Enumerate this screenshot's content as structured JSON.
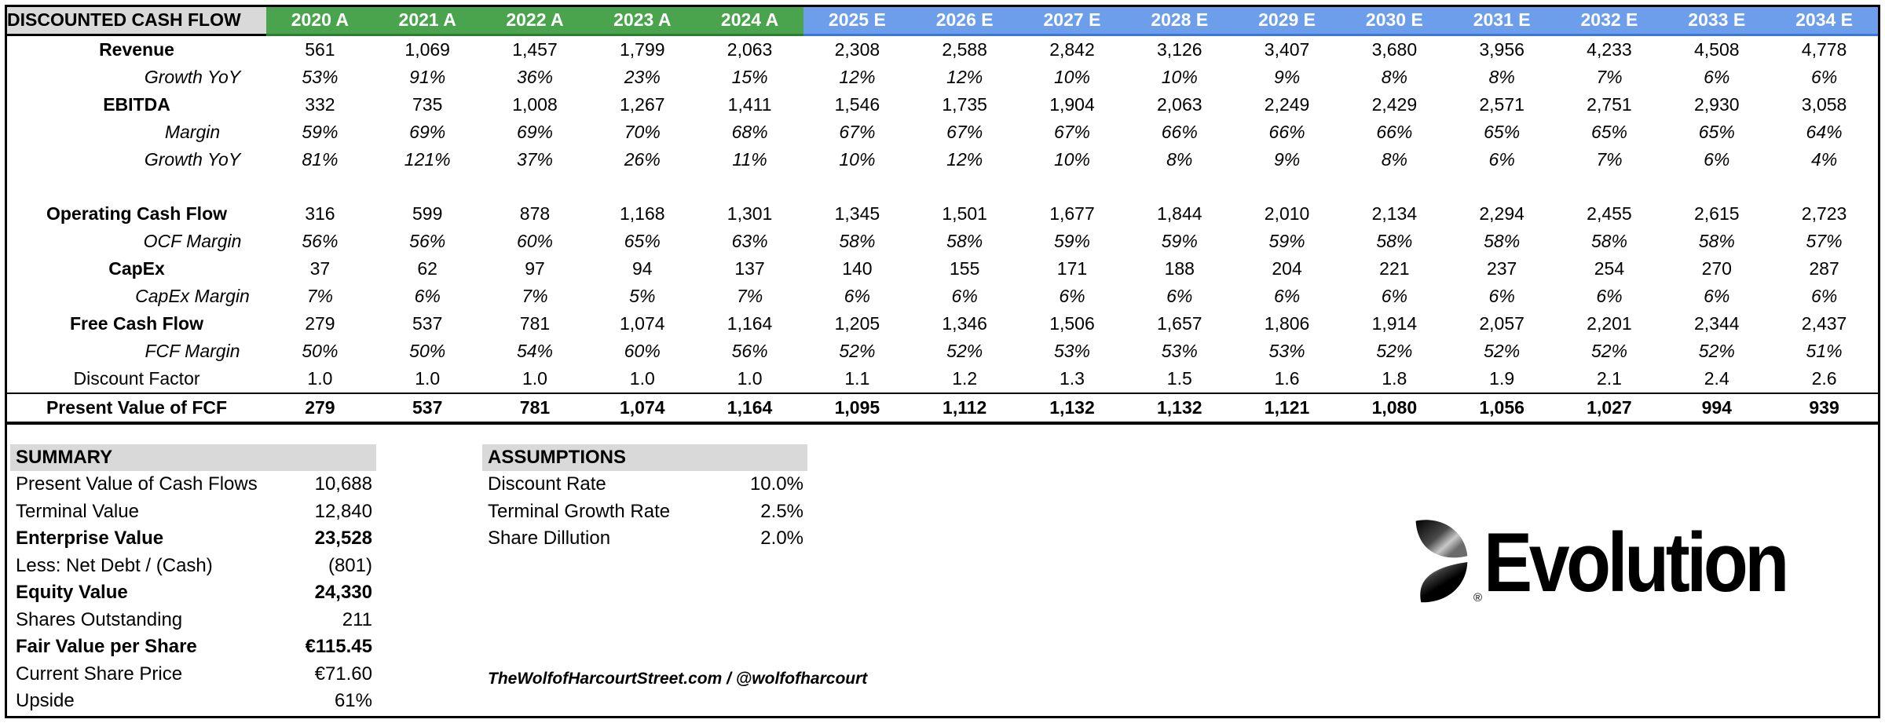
{
  "colors": {
    "green": "#49A44D",
    "greenDark": "#2E7D32",
    "blue": "#6D9EEB",
    "blueDark": "#3C78D8",
    "grey": "#D9D9D9"
  },
  "table": {
    "title": "DISCOUNTED CASH FLOW",
    "columns": [
      {
        "label": "2020 A",
        "type": "actual"
      },
      {
        "label": "2021 A",
        "type": "actual"
      },
      {
        "label": "2022 A",
        "type": "actual"
      },
      {
        "label": "2023 A",
        "type": "actual"
      },
      {
        "label": "2024 A",
        "type": "actual"
      },
      {
        "label": "2025 E",
        "type": "estimate"
      },
      {
        "label": "2026 E",
        "type": "estimate"
      },
      {
        "label": "2027 E",
        "type": "estimate"
      },
      {
        "label": "2028 E",
        "type": "estimate"
      },
      {
        "label": "2029 E",
        "type": "estimate"
      },
      {
        "label": "2030 E",
        "type": "estimate"
      },
      {
        "label": "2031 E",
        "type": "estimate"
      },
      {
        "label": "2032 E",
        "type": "estimate"
      },
      {
        "label": "2033 E",
        "type": "estimate"
      },
      {
        "label": "2034 E",
        "type": "estimate"
      }
    ],
    "rows": [
      {
        "label": "Revenue",
        "style": "bold",
        "values": [
          "561",
          "1,069",
          "1,457",
          "1,799",
          "2,063",
          "2,308",
          "2,588",
          "2,842",
          "3,126",
          "3,407",
          "3,680",
          "3,956",
          "4,233",
          "4,508",
          "4,778"
        ]
      },
      {
        "label": "Growth YoY",
        "style": "italic",
        "values": [
          "53%",
          "91%",
          "36%",
          "23%",
          "15%",
          "12%",
          "12%",
          "10%",
          "10%",
          "9%",
          "8%",
          "8%",
          "7%",
          "6%",
          "6%"
        ]
      },
      {
        "label": "EBITDA",
        "style": "bold",
        "values": [
          "332",
          "735",
          "1,008",
          "1,267",
          "1,411",
          "1,546",
          "1,735",
          "1,904",
          "2,063",
          "2,249",
          "2,429",
          "2,571",
          "2,751",
          "2,930",
          "3,058"
        ]
      },
      {
        "label": "Margin",
        "style": "italic",
        "values": [
          "59%",
          "69%",
          "69%",
          "70%",
          "68%",
          "67%",
          "67%",
          "67%",
          "66%",
          "66%",
          "66%",
          "65%",
          "65%",
          "65%",
          "64%"
        ]
      },
      {
        "label": "Growth YoY",
        "style": "italic",
        "values": [
          "81%",
          "121%",
          "37%",
          "26%",
          "11%",
          "10%",
          "12%",
          "10%",
          "8%",
          "9%",
          "8%",
          "6%",
          "7%",
          "6%",
          "4%"
        ]
      },
      {
        "label": "",
        "style": "blank",
        "values": [
          "",
          "",
          "",
          "",
          "",
          "",
          "",
          "",
          "",
          "",
          "",
          "",
          "",
          "",
          ""
        ]
      },
      {
        "label": "Operating Cash Flow",
        "style": "bold",
        "values": [
          "316",
          "599",
          "878",
          "1,168",
          "1,301",
          "1,345",
          "1,501",
          "1,677",
          "1,844",
          "2,010",
          "2,134",
          "2,294",
          "2,455",
          "2,615",
          "2,723"
        ]
      },
      {
        "label": "OCF Margin",
        "style": "italic",
        "values": [
          "56%",
          "56%",
          "60%",
          "65%",
          "63%",
          "58%",
          "58%",
          "59%",
          "59%",
          "59%",
          "58%",
          "58%",
          "58%",
          "58%",
          "57%"
        ]
      },
      {
        "label": "CapEx",
        "style": "bold",
        "values": [
          "37",
          "62",
          "97",
          "94",
          "137",
          "140",
          "155",
          "171",
          "188",
          "204",
          "221",
          "237",
          "254",
          "270",
          "287"
        ]
      },
      {
        "label": "CapEx Margin",
        "style": "italic",
        "values": [
          "7%",
          "6%",
          "7%",
          "5%",
          "7%",
          "6%",
          "6%",
          "6%",
          "6%",
          "6%",
          "6%",
          "6%",
          "6%",
          "6%",
          "6%"
        ]
      },
      {
        "label": "Free Cash Flow",
        "style": "bold",
        "values": [
          "279",
          "537",
          "781",
          "1,074",
          "1,164",
          "1,205",
          "1,346",
          "1,506",
          "1,657",
          "1,806",
          "1,914",
          "2,057",
          "2,201",
          "2,344",
          "2,437"
        ]
      },
      {
        "label": "FCF Margin",
        "style": "italic",
        "values": [
          "50%",
          "50%",
          "54%",
          "60%",
          "56%",
          "52%",
          "52%",
          "53%",
          "53%",
          "53%",
          "52%",
          "52%",
          "52%",
          "52%",
          "51%"
        ]
      },
      {
        "label": "Discount Factor",
        "style": "plain",
        "values": [
          "1.0",
          "1.0",
          "1.0",
          "1.0",
          "1.0",
          "1.1",
          "1.2",
          "1.3",
          "1.5",
          "1.6",
          "1.8",
          "1.9",
          "2.1",
          "2.4",
          "2.6"
        ]
      },
      {
        "label": "Present Value of FCF",
        "style": "total",
        "values": [
          "279",
          "537",
          "781",
          "1,074",
          "1,164",
          "1,095",
          "1,112",
          "1,132",
          "1,132",
          "1,121",
          "1,080",
          "1,056",
          "1,027",
          "994",
          "939"
        ]
      }
    ]
  },
  "summary": {
    "title": "SUMMARY",
    "rows": [
      {
        "label": "Present Value of Cash Flows",
        "value": "10,688",
        "bold": false
      },
      {
        "label": "Terminal Value",
        "value": "12,840",
        "bold": false
      },
      {
        "label": "Enterprise Value",
        "value": "23,528",
        "bold": true
      },
      {
        "label": "Less: Net Debt / (Cash)",
        "value": "(801)",
        "bold": false
      },
      {
        "label": "Equity Value",
        "value": "24,330",
        "bold": true
      },
      {
        "label": "Shares Outstanding",
        "value": "211",
        "bold": false
      },
      {
        "label": "Fair Value per Share",
        "value": "€115.45",
        "bold": true
      },
      {
        "label": "Current Share Price",
        "value": "€71.60",
        "bold": false
      },
      {
        "label": "Upside",
        "value": "61%",
        "bold": false
      }
    ]
  },
  "assumptions": {
    "title": "ASSUMPTIONS",
    "rows": [
      {
        "label": "Discount Rate",
        "value": "10.0%",
        "bold": false
      },
      {
        "label": "Terminal Growth Rate",
        "value": "2.5%",
        "bold": false
      },
      {
        "label": "Share Dillution",
        "value": "2.0%",
        "bold": false
      }
    ]
  },
  "watermark": "TheWolfofHarcourtStreet.com / @wolfofharcourt",
  "logo": {
    "text": "Evolution",
    "registered": "®"
  }
}
